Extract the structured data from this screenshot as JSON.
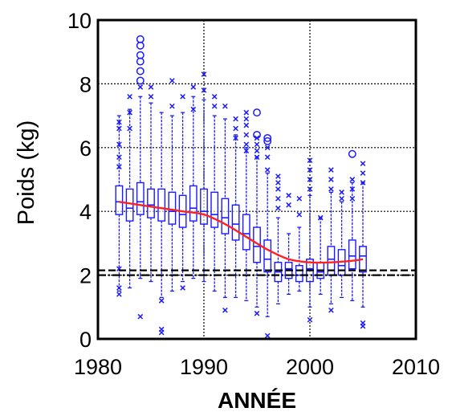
{
  "chart_data": {
    "type": "box",
    "title": "",
    "xlabel": "ANNÉE",
    "ylabel": "Poids (kg)",
    "xlim": [
      1980,
      2010
    ],
    "ylim": [
      0,
      10
    ],
    "x_ticks": [
      "1980",
      "1990",
      "2000",
      "2010"
    ],
    "y_ticks": [
      "0",
      "2",
      "4",
      "6",
      "8",
      "10"
    ],
    "grid": "major, dotted",
    "colors": {
      "boxes": "#1a1aff",
      "trend": "#ff2020",
      "reference": "#000000"
    },
    "reference_lines": [
      {
        "y": 2.15,
        "style": "dashed"
      },
      {
        "y": 2.0,
        "style": "dashdot"
      }
    ],
    "trend_line": {
      "x": [
        1982,
        1984,
        1986,
        1988,
        1990,
        1992,
        1994,
        1996,
        1998,
        2000,
        2002,
        2004,
        2005
      ],
      "y": [
        4.3,
        4.2,
        4.1,
        4.0,
        3.9,
        3.6,
        3.2,
        2.8,
        2.5,
        2.4,
        2.4,
        2.45,
        2.5
      ]
    },
    "boxes": [
      {
        "x": 1982,
        "whislo": 1.5,
        "q1": 3.9,
        "med": 4.3,
        "q3": 4.8,
        "whishi": 7.0
      },
      {
        "x": 1983,
        "whislo": 1.6,
        "q1": 3.7,
        "med": 4.1,
        "q3": 4.7,
        "whishi": 7.2
      },
      {
        "x": 1984,
        "whislo": 1.9,
        "q1": 3.9,
        "med": 4.3,
        "q3": 4.9,
        "whishi": 7.6
      },
      {
        "x": 1985,
        "whislo": 1.8,
        "q1": 3.8,
        "med": 4.2,
        "q3": 4.7,
        "whishi": 7.4
      },
      {
        "x": 1986,
        "whislo": 1.3,
        "q1": 3.7,
        "med": 4.1,
        "q3": 4.7,
        "whishi": 7.1
      },
      {
        "x": 1987,
        "whislo": 1.5,
        "q1": 3.6,
        "med": 4.0,
        "q3": 4.6,
        "whishi": 7.0
      },
      {
        "x": 1988,
        "whislo": 1.8,
        "q1": 3.5,
        "med": 3.9,
        "q3": 4.5,
        "whishi": 7.1
      },
      {
        "x": 1989,
        "whislo": 1.9,
        "q1": 3.7,
        "med": 4.1,
        "q3": 4.8,
        "whishi": 7.6
      },
      {
        "x": 1990,
        "whislo": 1.8,
        "q1": 3.6,
        "med": 4.0,
        "q3": 4.7,
        "whishi": 7.5
      },
      {
        "x": 1991,
        "whislo": 1.5,
        "q1": 3.5,
        "med": 3.9,
        "q3": 4.6,
        "whishi": 7.0
      },
      {
        "x": 1992,
        "whislo": 1.3,
        "q1": 3.3,
        "med": 3.8,
        "q3": 4.4,
        "whishi": 6.9
      },
      {
        "x": 1993,
        "whislo": 1.3,
        "q1": 3.1,
        "med": 3.6,
        "q3": 4.2,
        "whishi": 6.4
      },
      {
        "x": 1994,
        "whislo": 1.2,
        "q1": 2.8,
        "med": 3.3,
        "q3": 3.9,
        "whishi": 6.0
      },
      {
        "x": 1995,
        "whislo": 1.0,
        "q1": 2.4,
        "med": 2.9,
        "q3": 3.5,
        "whishi": 5.7
      },
      {
        "x": 1996,
        "whislo": 0.7,
        "q1": 2.1,
        "med": 2.5,
        "q3": 3.1,
        "whishi": 5.2
      },
      {
        "x": 1997,
        "whislo": 1.1,
        "q1": 1.8,
        "med": 2.1,
        "q3": 2.4,
        "whishi": 3.8
      },
      {
        "x": 1998,
        "whislo": 1.4,
        "q1": 1.9,
        "med": 2.2,
        "q3": 2.4,
        "whishi": 3.3
      },
      {
        "x": 1999,
        "whislo": 1.5,
        "q1": 1.8,
        "med": 2.0,
        "q3": 2.3,
        "whishi": 3.5
      },
      {
        "x": 2000,
        "whislo": 1.0,
        "q1": 1.8,
        "med": 2.2,
        "q3": 2.5,
        "whishi": 4.5
      },
      {
        "x": 2001,
        "whislo": 1.4,
        "q1": 1.9,
        "med": 2.1,
        "q3": 2.4,
        "whishi": 3.8
      },
      {
        "x": 2002,
        "whislo": 1.1,
        "q1": 2.0,
        "med": 2.5,
        "q3": 2.9,
        "whishi": 4.6
      },
      {
        "x": 2003,
        "whislo": 1.3,
        "q1": 2.0,
        "med": 2.3,
        "q3": 2.8,
        "whishi": 4.3
      },
      {
        "x": 2004,
        "whislo": 1.2,
        "q1": 2.2,
        "med": 2.6,
        "q3": 3.1,
        "whishi": 4.9
      },
      {
        "x": 2005,
        "whislo": 1.0,
        "q1": 2.1,
        "med": 2.6,
        "q3": 2.9,
        "whishi": 4.9
      }
    ],
    "outliers_x": [
      {
        "x": 1982,
        "y": [
          5.4,
          5.7,
          6.1,
          6.6,
          6.8,
          2.2,
          1.6,
          1.4
        ]
      },
      {
        "x": 1983,
        "y": [
          6.6,
          7.1,
          7.6
        ]
      },
      {
        "x": 1984,
        "y": [
          7.9,
          0.7
        ]
      },
      {
        "x": 1985,
        "y": [
          7.6,
          7.9
        ]
      },
      {
        "x": 1986,
        "y": [
          1.2,
          0.2,
          0.3
        ]
      },
      {
        "x": 1987,
        "y": [
          8.1,
          7.3
        ]
      },
      {
        "x": 1988,
        "y": [
          7.6,
          1.6
        ]
      },
      {
        "x": 1989,
        "y": [
          7.9,
          7.2
        ]
      },
      {
        "x": 1990,
        "y": [
          8.3,
          7.8
        ]
      },
      {
        "x": 1991,
        "y": [
          7.6,
          7.3
        ]
      },
      {
        "x": 1992,
        "y": [
          7.3,
          0.9
        ]
      },
      {
        "x": 1993,
        "y": [
          6.9,
          6.6,
          6.3
        ]
      },
      {
        "x": 1994,
        "y": [
          6.1,
          6.4,
          6.7,
          6.9,
          7.1,
          5.9
        ]
      },
      {
        "x": 1995,
        "y": [
          6.3,
          6.1,
          5.9,
          5.7,
          0.8
        ]
      },
      {
        "x": 1996,
        "y": [
          6.0,
          5.7,
          5.3,
          0.1
        ]
      },
      {
        "x": 1997,
        "y": [
          5.1,
          4.9,
          4.7,
          4.4,
          4.1
        ]
      },
      {
        "x": 1998,
        "y": [
          4.5,
          4.2
        ]
      },
      {
        "x": 1999,
        "y": [
          3.9,
          4.4
        ]
      },
      {
        "x": 2000,
        "y": [
          5.6,
          5.3,
          5.0,
          4.7,
          0.6
        ]
      },
      {
        "x": 2001,
        "y": [
          3.8
        ]
      },
      {
        "x": 2002,
        "y": [
          5.3,
          5.0,
          4.7,
          0.9
        ]
      },
      {
        "x": 2003,
        "y": [
          4.6,
          4.4
        ]
      },
      {
        "x": 2004,
        "y": [
          5.0,
          4.7,
          4.4
        ]
      },
      {
        "x": 2005,
        "y": [
          5.5,
          5.2,
          4.9,
          0.5,
          0.4
        ]
      }
    ],
    "outliers_o": [
      {
        "x": 1984,
        "y": [
          9.4,
          9.2,
          8.9,
          8.7,
          8.4,
          8.1
        ]
      },
      {
        "x": 1995,
        "y": [
          7.1,
          6.4
        ]
      },
      {
        "x": 1996,
        "y": [
          6.3,
          6.2
        ]
      },
      {
        "x": 2004,
        "y": [
          5.8
        ]
      }
    ]
  }
}
